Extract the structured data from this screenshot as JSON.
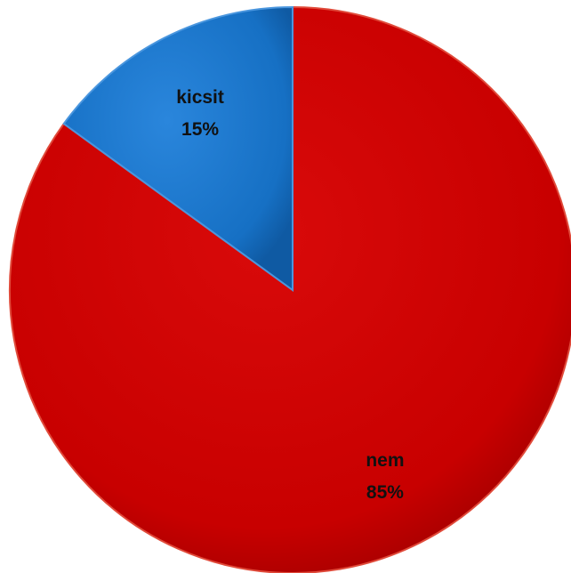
{
  "chart_data": {
    "type": "pie",
    "title": "",
    "slices": [
      {
        "label": "nem",
        "value": 85,
        "value_label": "85%",
        "color": "#cc0000"
      },
      {
        "label": "kicsit",
        "value": 15,
        "value_label": "15%",
        "color": "#1a73c8"
      }
    ],
    "start_angle_deg": 0,
    "direction": "clockwise",
    "legend": "none",
    "data_labels": "inside"
  }
}
